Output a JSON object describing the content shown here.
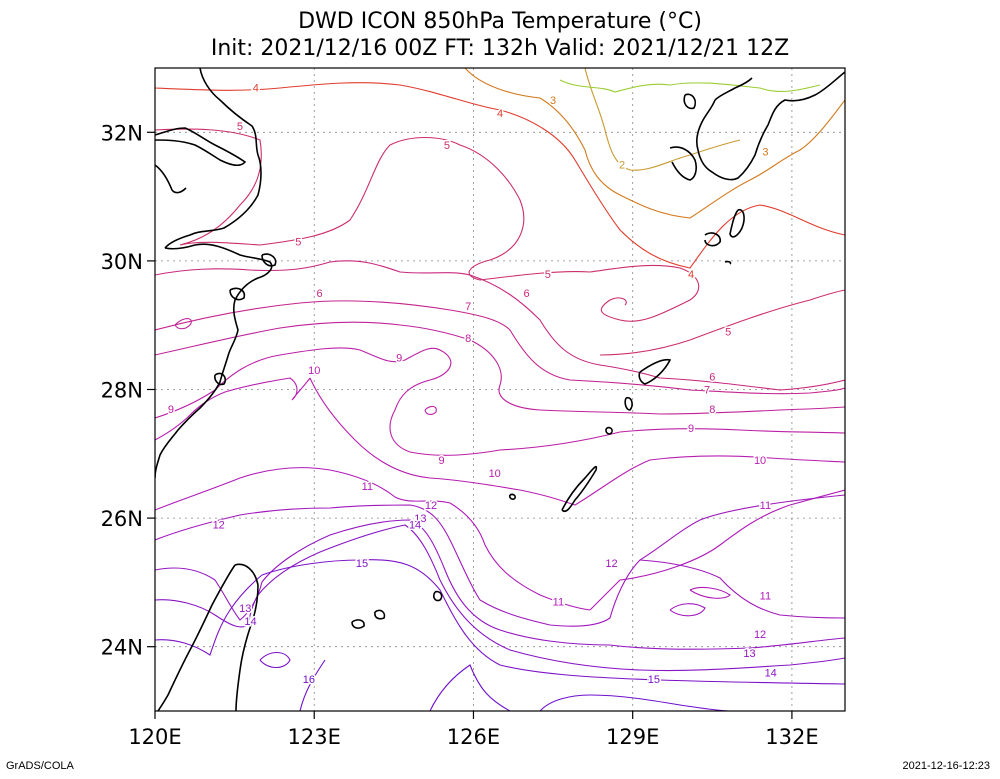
{
  "title": {
    "line1": "DWD ICON 850hPa Temperature (°C)",
    "line2": "Init: 2021/12/16 00Z  FT: 132h  Valid: 2021/12/21 12Z"
  },
  "axes": {
    "lon_labels": [
      "120E",
      "123E",
      "126E",
      "129E",
      "132E"
    ],
    "lat_labels": [
      "32N",
      "30N",
      "28N",
      "26N",
      "24N"
    ],
    "lon_range": [
      120,
      133
    ],
    "lat_range": [
      23,
      33
    ]
  },
  "contours": {
    "interval": 1,
    "labels": [
      {
        "text": "2",
        "lon": 128.8,
        "lat": 31.5,
        "color": "#c89a2e"
      },
      {
        "text": "3",
        "lon": 127.5,
        "lat": 32.5,
        "color": "#d27a1e"
      },
      {
        "text": "3",
        "lon": 131.5,
        "lat": 31.7,
        "color": "#d27a1e"
      },
      {
        "text": "4",
        "lon": 121.9,
        "lat": 32.7,
        "color": "#e03c2c"
      },
      {
        "text": "4",
        "lon": 126.5,
        "lat": 32.3,
        "color": "#e03c2c"
      },
      {
        "text": "4",
        "lon": 130.1,
        "lat": 29.8,
        "color": "#e03c2c"
      },
      {
        "text": "5",
        "lon": 121.6,
        "lat": 32.1,
        "color": "#cc2e6a"
      },
      {
        "text": "5",
        "lon": 125.5,
        "lat": 31.8,
        "color": "#cc2e6a"
      },
      {
        "text": "5",
        "lon": 122.7,
        "lat": 30.3,
        "color": "#cc2e6a"
      },
      {
        "text": "5",
        "lon": 127.4,
        "lat": 29.8,
        "color": "#cc2e6a"
      },
      {
        "text": "5",
        "lon": 130.8,
        "lat": 28.9,
        "color": "#cc2e6a"
      },
      {
        "text": "6",
        "lon": 123.1,
        "lat": 29.5,
        "color": "#c8287e"
      },
      {
        "text": "6",
        "lon": 127.0,
        "lat": 29.5,
        "color": "#c8287e"
      },
      {
        "text": "6",
        "lon": 130.5,
        "lat": 28.2,
        "color": "#c8287e"
      },
      {
        "text": "7",
        "lon": 125.9,
        "lat": 29.3,
        "color": "#c4248e"
      },
      {
        "text": "7",
        "lon": 130.4,
        "lat": 28.0,
        "color": "#c4248e"
      },
      {
        "text": "8",
        "lon": 125.9,
        "lat": 28.8,
        "color": "#c0229a"
      },
      {
        "text": "8",
        "lon": 130.5,
        "lat": 27.7,
        "color": "#c0229a"
      },
      {
        "text": "9",
        "lon": 124.6,
        "lat": 28.5,
        "color": "#bc20a6"
      },
      {
        "text": "9",
        "lon": 120.3,
        "lat": 27.7,
        "color": "#bc20a6"
      },
      {
        "text": "9",
        "lon": 125.4,
        "lat": 26.9,
        "color": "#bc20a6"
      },
      {
        "text": "9",
        "lon": 130.1,
        "lat": 27.4,
        "color": "#bc20a6"
      },
      {
        "text": "10",
        "lon": 123.0,
        "lat": 28.3,
        "color": "#b81eb0"
      },
      {
        "text": "10",
        "lon": 126.4,
        "lat": 26.7,
        "color": "#b81eb0"
      },
      {
        "text": "10",
        "lon": 131.4,
        "lat": 26.9,
        "color": "#b81eb0"
      },
      {
        "text": "11",
        "lon": 124.0,
        "lat": 26.5,
        "color": "#b01ab8"
      },
      {
        "text": "11",
        "lon": 131.5,
        "lat": 26.2,
        "color": "#b01ab8"
      },
      {
        "text": "11",
        "lon": 127.6,
        "lat": 24.7,
        "color": "#b01ab8"
      },
      {
        "text": "11",
        "lon": 131.5,
        "lat": 24.8,
        "color": "#b01ab8"
      },
      {
        "text": "12",
        "lon": 121.2,
        "lat": 25.9,
        "color": "#a018bc"
      },
      {
        "text": "12",
        "lon": 125.2,
        "lat": 26.2,
        "color": "#a018bc"
      },
      {
        "text": "12",
        "lon": 128.6,
        "lat": 25.3,
        "color": "#a018bc"
      },
      {
        "text": "12",
        "lon": 131.4,
        "lat": 24.2,
        "color": "#a018bc"
      },
      {
        "text": "13",
        "lon": 125.0,
        "lat": 26.0,
        "color": "#9416c0"
      },
      {
        "text": "13",
        "lon": 121.7,
        "lat": 24.6,
        "color": "#9416c0"
      },
      {
        "text": "13",
        "lon": 131.2,
        "lat": 23.9,
        "color": "#9416c0"
      },
      {
        "text": "14",
        "lon": 124.9,
        "lat": 25.9,
        "color": "#8814c4"
      },
      {
        "text": "14",
        "lon": 121.8,
        "lat": 24.4,
        "color": "#8814c4"
      },
      {
        "text": "14",
        "lon": 131.6,
        "lat": 23.6,
        "color": "#8814c4"
      },
      {
        "text": "15",
        "lon": 123.9,
        "lat": 25.3,
        "color": "#7c12c8"
      },
      {
        "text": "15",
        "lon": 129.4,
        "lat": 23.5,
        "color": "#7c12c8"
      },
      {
        "text": "16",
        "lon": 122.9,
        "lat": 23.5,
        "color": "#6e10cc"
      }
    ]
  },
  "footer": {
    "left": "GrADS/COLA",
    "right": "2021-12-16-12:23"
  },
  "colors": {
    "land": "#000000",
    "grid": "#888888",
    "frame": "#000000"
  }
}
